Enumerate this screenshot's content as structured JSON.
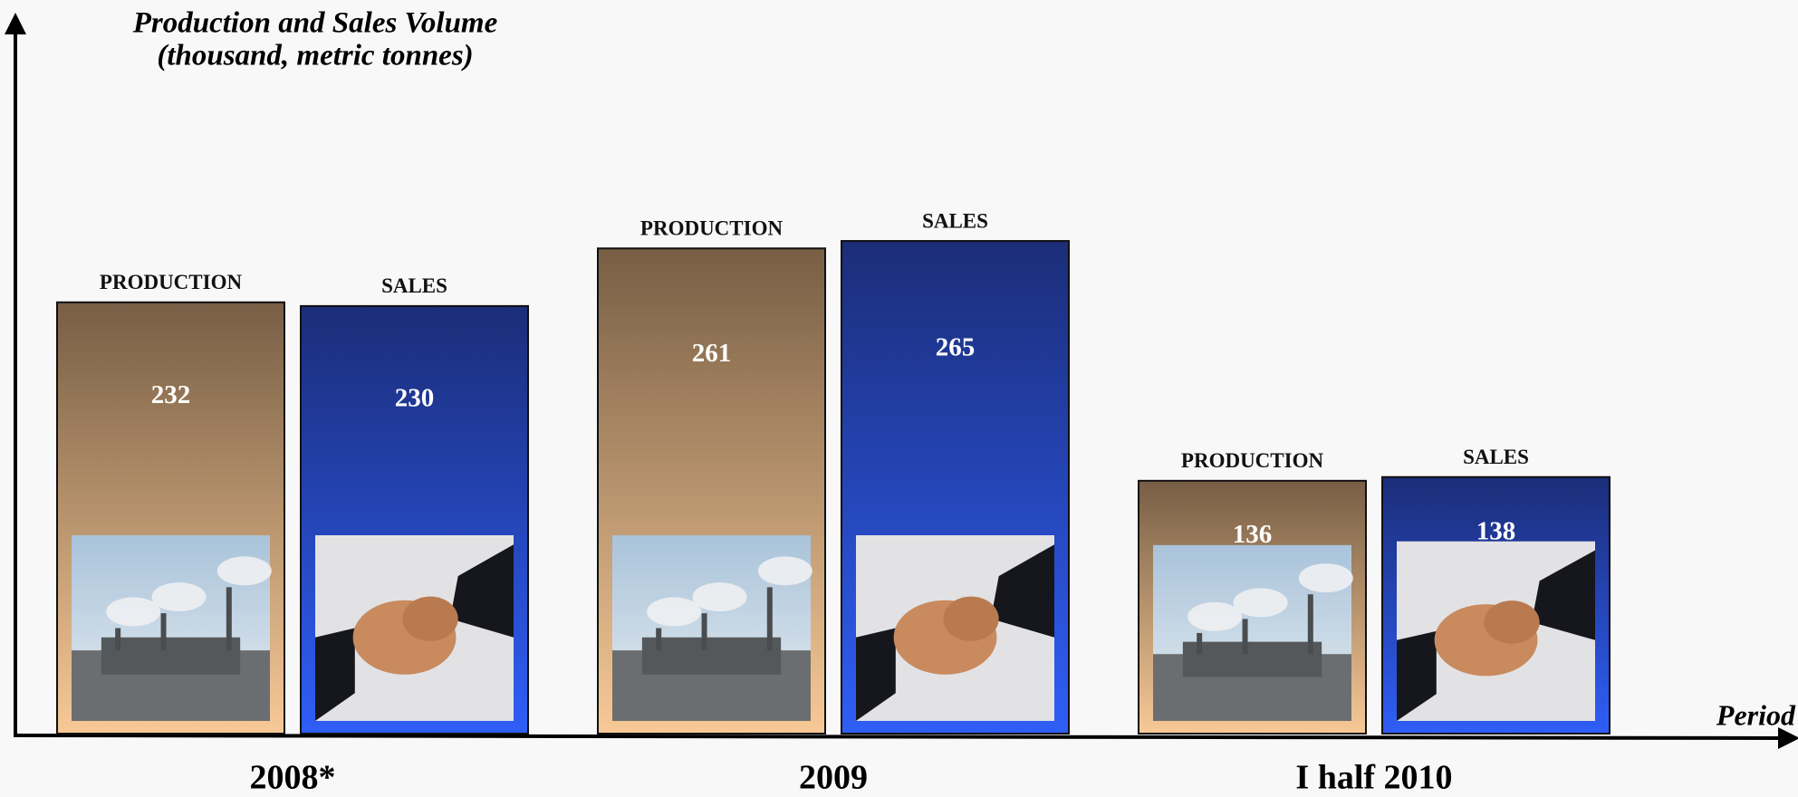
{
  "chart_data": {
    "type": "bar",
    "title": "Production and Sales Volume",
    "subtitle": "(thousand, metric tonnes)",
    "x_label": "Period",
    "categories": [
      "2008*",
      "2009",
      "I half 2010"
    ],
    "series": [
      {
        "name": "PRODUCTION",
        "color": "#785e45",
        "values": [
          232,
          261,
          136
        ]
      },
      {
        "name": "SALES",
        "color": "#1b2d78",
        "values": [
          230,
          265,
          138
        ]
      }
    ],
    "ylim": [
      0,
      380
    ]
  }
}
